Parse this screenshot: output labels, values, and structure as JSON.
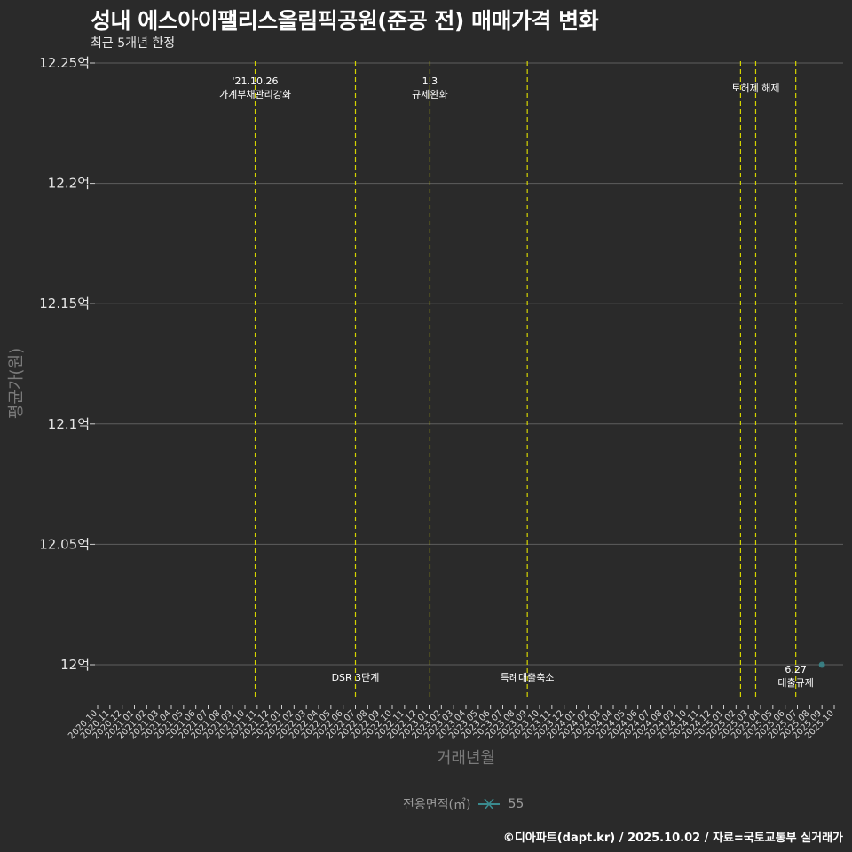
{
  "header": {
    "title": "성내 에스아이팰리스올림픽공원(준공 전) 매매가격 변화",
    "subtitle": "최근 5개년 한정"
  },
  "legend": {
    "title": "전용면적(㎡)",
    "label": "55"
  },
  "caption": "©디아파트(dapt.kr) / 2025.10.02 / 자료=국토교통부 실거래가",
  "colors": {
    "background": "#2a2a2a",
    "grid": "#5e5e5e",
    "event_line": "#d4d400",
    "series": "#3a8a8e"
  },
  "chart_data": {
    "type": "scatter",
    "title": "성내 에스아이팰리스올림픽공원(준공 전) 매매가격 변화",
    "subtitle": "최근 5개년 한정",
    "xlabel": "거래년월",
    "ylabel": "평균가(원)",
    "ylim": [
      11.985,
      12.25
    ],
    "yticks": [
      12.0,
      12.05,
      12.1,
      12.15,
      12.2,
      12.25
    ],
    "ytick_labels": [
      "12억",
      "12.05억",
      "12.1억",
      "12.15억",
      "12.2억",
      "12.25억"
    ],
    "x_categories": [
      "2020.10",
      "2020.11",
      "2020.12",
      "2021.01",
      "2021.02",
      "2021.03",
      "2021.04",
      "2021.05",
      "2021.06",
      "2021.07",
      "2021.08",
      "2021.09",
      "2021.10",
      "2021.11",
      "2021.12",
      "2022.01",
      "2022.02",
      "2022.03",
      "2022.04",
      "2022.05",
      "2022.06",
      "2022.07",
      "2022.08",
      "2022.09",
      "2022.10",
      "2022.11",
      "2022.12",
      "2023.01",
      "2023.02",
      "2023.03",
      "2023.04",
      "2023.05",
      "2023.06",
      "2023.07",
      "2023.08",
      "2023.09",
      "2023.10",
      "2023.11",
      "2023.12",
      "2024.01",
      "2024.02",
      "2024.03",
      "2024.04",
      "2024.05",
      "2024.06",
      "2024.07",
      "2024.08",
      "2024.09",
      "2024.10",
      "2024.11",
      "2024.12",
      "2025.01",
      "2025.02",
      "2025.03",
      "2025.04",
      "2025.05",
      "2025.06",
      "2025.07",
      "2025.08",
      "2025.09",
      "2025.10"
    ],
    "grid": true,
    "legend_position": "bottom",
    "series": [
      {
        "name": "55",
        "points": [
          {
            "x": "2025.09",
            "y": 12.0
          }
        ]
      }
    ],
    "events": [
      {
        "x": "2021.10.26",
        "label_lines": [
          "'21.10.26",
          "가계부채관리강화"
        ],
        "position": "top"
      },
      {
        "x": "2022.07",
        "label_lines": [
          "DSR 3단계"
        ],
        "position": "bottom"
      },
      {
        "x": "2023.01.03",
        "label_lines": [
          "1.3",
          "규제완화"
        ],
        "position": "top"
      },
      {
        "x": "2023.09",
        "label_lines": [
          "특례대출축소"
        ],
        "position": "bottom"
      },
      {
        "x": "2025.02.12",
        "label_lines": [],
        "position": "none"
      },
      {
        "x": "2025.03.19",
        "label_lines": [
          "토허제 해제"
        ],
        "position": "top"
      },
      {
        "x": "2025.06.27",
        "label_lines": [
          "6.27",
          "대출규제"
        ],
        "position": "bottom"
      }
    ]
  }
}
